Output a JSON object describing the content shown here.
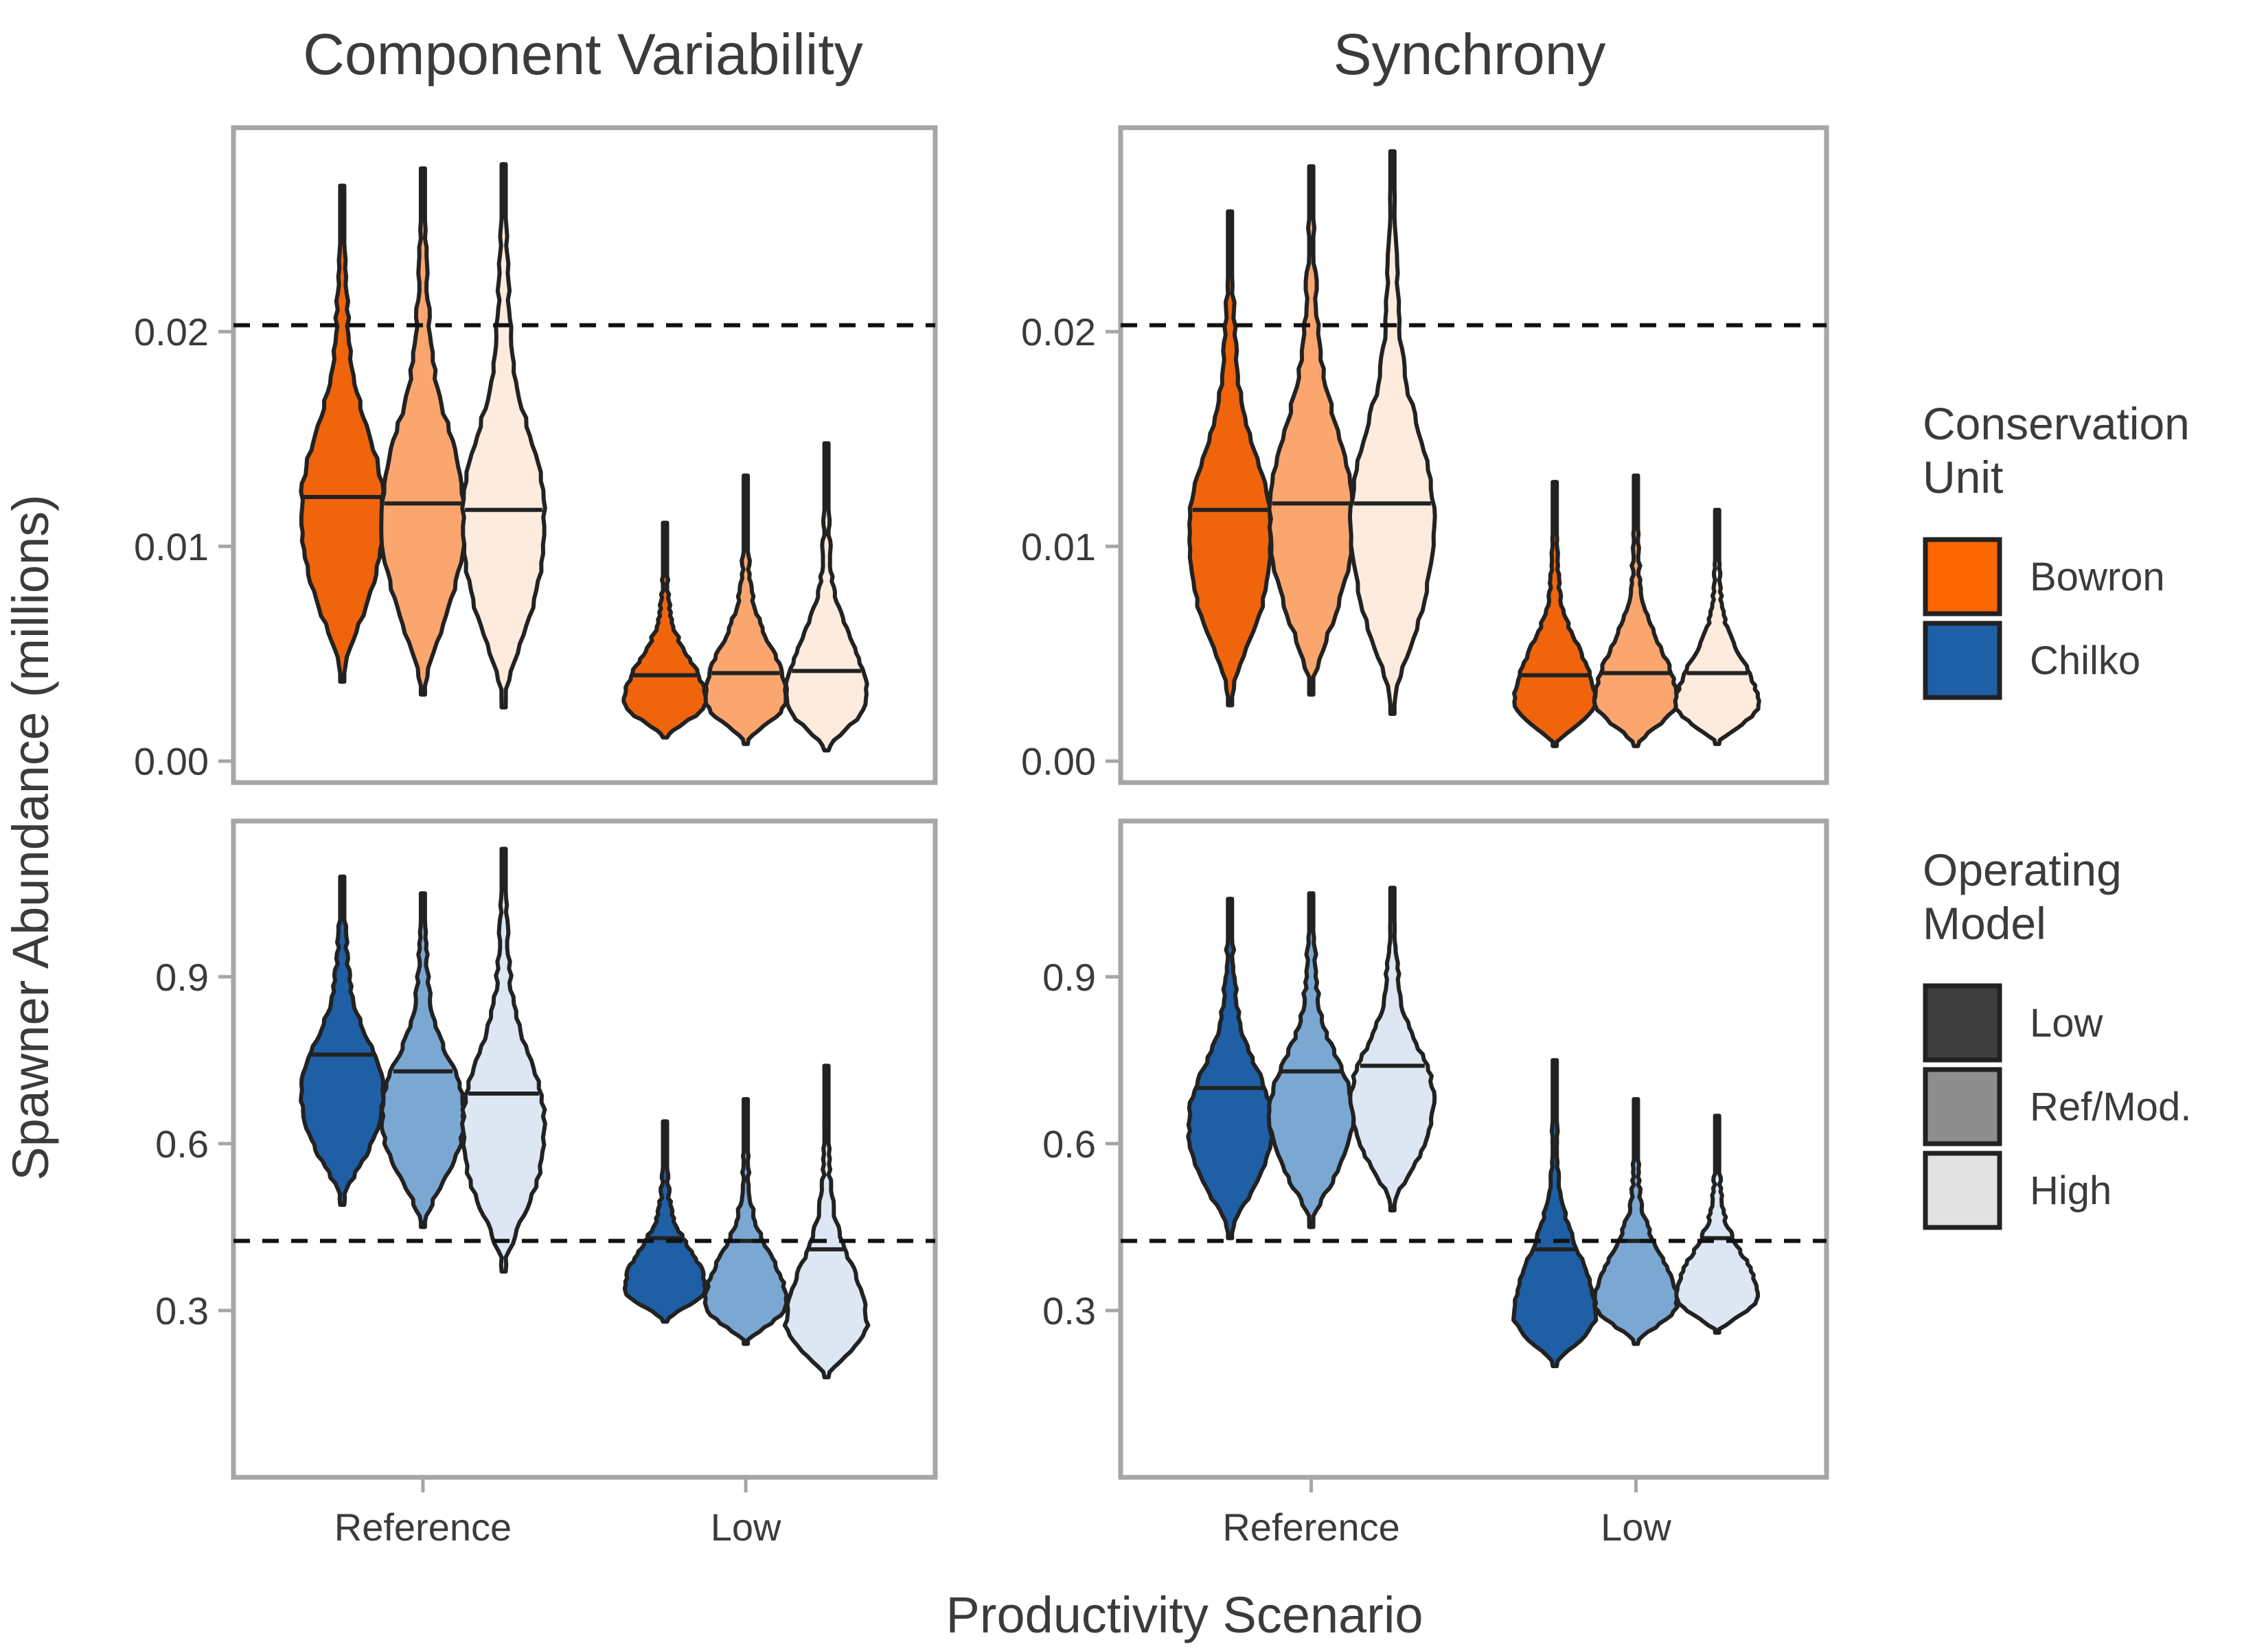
{
  "chart_data": {
    "type": "violin",
    "x_axis_title": "Productivity Scenario",
    "y_axis_title": "Spawner Abundance (millions)",
    "x_categories": [
      "Reference",
      "Low"
    ],
    "columns": [
      "Component Variability",
      "Synchrony"
    ],
    "rows": [
      "Bowron",
      "Chilko"
    ],
    "y_axes": {
      "Bowron": {
        "ylim": [
          -0.001,
          0.0295
        ],
        "ticks": [
          0.0,
          0.01,
          0.02
        ],
        "tick_labels": [
          "0.00",
          "0.01",
          "0.02"
        ],
        "reference_line": 0.0203
      },
      "Chilko": {
        "ylim": [
          0.0,
          1.18
        ],
        "ticks": [
          0.3,
          0.6,
          0.9
        ],
        "tick_labels": [
          "0.3",
          "0.6",
          "0.9"
        ],
        "reference_line": 0.425
      }
    },
    "panels": [
      {
        "column": "Component Variability",
        "row": "Bowron",
        "series": [
          {
            "scenario": "Reference",
            "operating_model": "Low",
            "min": 0.0037,
            "median": 0.0123,
            "max": 0.0268
          },
          {
            "scenario": "Reference",
            "operating_model": "Ref/Mod.",
            "min": 0.0031,
            "median": 0.012,
            "max": 0.0276
          },
          {
            "scenario": "Reference",
            "operating_model": "High",
            "min": 0.0025,
            "median": 0.0117,
            "max": 0.0278
          },
          {
            "scenario": "Low",
            "operating_model": "Low",
            "min": 0.0011,
            "median": 0.004,
            "max": 0.0111
          },
          {
            "scenario": "Low",
            "operating_model": "Ref/Mod.",
            "min": 0.0008,
            "median": 0.0041,
            "max": 0.0133
          },
          {
            "scenario": "Low",
            "operating_model": "High",
            "min": 0.0005,
            "median": 0.0042,
            "max": 0.0148
          }
        ]
      },
      {
        "column": "Synchrony",
        "row": "Bowron",
        "series": [
          {
            "scenario": "Reference",
            "operating_model": "Low",
            "min": 0.0026,
            "median": 0.0117,
            "max": 0.0256
          },
          {
            "scenario": "Reference",
            "operating_model": "Ref/Mod.",
            "min": 0.0031,
            "median": 0.012,
            "max": 0.0277
          },
          {
            "scenario": "Reference",
            "operating_model": "High",
            "min": 0.0022,
            "median": 0.012,
            "max": 0.0284
          },
          {
            "scenario": "Low",
            "operating_model": "Low",
            "min": 0.0007,
            "median": 0.004,
            "max": 0.013
          },
          {
            "scenario": "Low",
            "operating_model": "Ref/Mod.",
            "min": 0.0007,
            "median": 0.0041,
            "max": 0.0133
          },
          {
            "scenario": "Low",
            "operating_model": "High",
            "min": 0.0008,
            "median": 0.0041,
            "max": 0.0117
          }
        ]
      },
      {
        "column": "Component Variability",
        "row": "Chilko",
        "series": [
          {
            "scenario": "Reference",
            "operating_model": "Low",
            "min": 0.49,
            "median": 0.76,
            "max": 1.08
          },
          {
            "scenario": "Reference",
            "operating_model": "Ref/Mod.",
            "min": 0.45,
            "median": 0.73,
            "max": 1.05
          },
          {
            "scenario": "Reference",
            "operating_model": "High",
            "min": 0.37,
            "median": 0.69,
            "max": 1.13
          },
          {
            "scenario": "Low",
            "operating_model": "Low",
            "min": 0.28,
            "median": 0.43,
            "max": 0.64
          },
          {
            "scenario": "Low",
            "operating_model": "Ref/Mod.",
            "min": 0.24,
            "median": 0.425,
            "max": 0.68
          },
          {
            "scenario": "Low",
            "operating_model": "High",
            "min": 0.18,
            "median": 0.41,
            "max": 0.74
          }
        ]
      },
      {
        "column": "Synchrony",
        "row": "Chilko",
        "series": [
          {
            "scenario": "Reference",
            "operating_model": "Low",
            "min": 0.43,
            "median": 0.7,
            "max": 1.04
          },
          {
            "scenario": "Reference",
            "operating_model": "Ref/Mod.",
            "min": 0.45,
            "median": 0.73,
            "max": 1.05
          },
          {
            "scenario": "Reference",
            "operating_model": "High",
            "min": 0.48,
            "median": 0.74,
            "max": 1.06
          },
          {
            "scenario": "Low",
            "operating_model": "Low",
            "min": 0.2,
            "median": 0.41,
            "max": 0.75
          },
          {
            "scenario": "Low",
            "operating_model": "Ref/Mod.",
            "min": 0.24,
            "median": 0.425,
            "max": 0.68
          },
          {
            "scenario": "Low",
            "operating_model": "High",
            "min": 0.26,
            "median": 0.43,
            "max": 0.65
          }
        ]
      }
    ],
    "legend": {
      "placement": "right",
      "groups": [
        {
          "title_lines": [
            "Conservation",
            "Unit"
          ],
          "items": [
            {
              "label": "Bowron",
              "color": "#fd6600"
            },
            {
              "label": "Chilko",
              "color": "#1d60a8"
            }
          ]
        },
        {
          "title_lines": [
            "Operating",
            "Model"
          ],
          "items": [
            {
              "label": "Low",
              "color": "#3f3f3f"
            },
            {
              "label": "Ref/Mod.",
              "color": "#8e8e8e"
            },
            {
              "label": "High",
              "color": "#e2e2e2"
            }
          ]
        }
      ]
    },
    "fill_colors": {
      "Bowron": {
        "Low": "#f0640c",
        "Ref/Mod.": "#fba66f",
        "High": "#fdebdd"
      },
      "Chilko": {
        "Low": "#1f5fa5",
        "Ref/Mod.": "#7ba8d2",
        "High": "#dce7f3"
      }
    },
    "grid": false
  }
}
